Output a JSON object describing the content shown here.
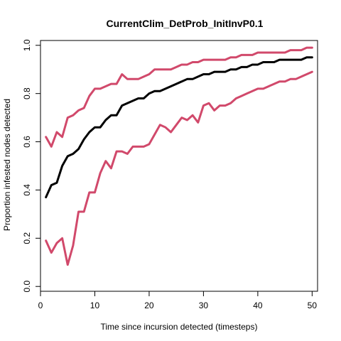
{
  "chart_data": {
    "type": "line",
    "title": "CurrentClim_DetProb_InitInvP0.1",
    "xlabel": "Time since incursion detected (timesteps)",
    "ylabel": "Proportion infested nodes detected",
    "xlim": [
      0,
      51
    ],
    "ylim": [
      -0.02,
      1.02
    ],
    "xticks": [
      0,
      10,
      20,
      30,
      40,
      50
    ],
    "yticks": [
      0.0,
      0.2,
      0.4,
      0.6,
      0.8,
      1.0
    ],
    "xtick_labels": [
      "0",
      "10",
      "20",
      "30",
      "40",
      "50"
    ],
    "ytick_labels": [
      "0.0",
      "0.2",
      "0.4",
      "0.6",
      "0.8",
      "1.0"
    ],
    "grid": false,
    "x": [
      1,
      2,
      3,
      4,
      5,
      6,
      7,
      8,
      9,
      10,
      11,
      12,
      13,
      14,
      15,
      16,
      17,
      18,
      19,
      20,
      21,
      22,
      23,
      24,
      25,
      26,
      27,
      28,
      29,
      30,
      31,
      32,
      33,
      34,
      35,
      36,
      37,
      38,
      39,
      40,
      41,
      42,
      43,
      44,
      45,
      46,
      47,
      48,
      49,
      50
    ],
    "series": [
      {
        "color": "#000000",
        "values": [
          0.37,
          0.42,
          0.43,
          0.5,
          0.54,
          0.55,
          0.57,
          0.61,
          0.64,
          0.66,
          0.66,
          0.69,
          0.71,
          0.71,
          0.75,
          0.76,
          0.77,
          0.78,
          0.78,
          0.8,
          0.81,
          0.81,
          0.82,
          0.83,
          0.84,
          0.85,
          0.86,
          0.86,
          0.87,
          0.88,
          0.88,
          0.89,
          0.89,
          0.89,
          0.9,
          0.9,
          0.91,
          0.91,
          0.92,
          0.92,
          0.93,
          0.93,
          0.93,
          0.94,
          0.94,
          0.94,
          0.94,
          0.94,
          0.95,
          0.95
        ]
      },
      {
        "color": "#D1496B",
        "values": [
          0.62,
          0.58,
          0.64,
          0.62,
          0.7,
          0.71,
          0.73,
          0.74,
          0.79,
          0.82,
          0.82,
          0.83,
          0.84,
          0.84,
          0.88,
          0.86,
          0.86,
          0.86,
          0.87,
          0.88,
          0.9,
          0.9,
          0.9,
          0.9,
          0.91,
          0.92,
          0.92,
          0.93,
          0.93,
          0.94,
          0.94,
          0.94,
          0.94,
          0.94,
          0.95,
          0.95,
          0.96,
          0.96,
          0.96,
          0.97,
          0.97,
          0.97,
          0.97,
          0.97,
          0.97,
          0.98,
          0.98,
          0.98,
          0.99,
          0.99
        ]
      },
      {
        "color": "#D1496B",
        "values": [
          0.19,
          0.14,
          0.18,
          0.2,
          0.09,
          0.17,
          0.31,
          0.31,
          0.39,
          0.39,
          0.47,
          0.52,
          0.49,
          0.56,
          0.56,
          0.55,
          0.58,
          0.58,
          0.58,
          0.59,
          0.63,
          0.67,
          0.66,
          0.64,
          0.67,
          0.7,
          0.69,
          0.71,
          0.68,
          0.75,
          0.76,
          0.73,
          0.75,
          0.75,
          0.76,
          0.78,
          0.79,
          0.8,
          0.81,
          0.82,
          0.82,
          0.83,
          0.84,
          0.85,
          0.85,
          0.86,
          0.86,
          0.87,
          0.88,
          0.89
        ]
      }
    ]
  }
}
